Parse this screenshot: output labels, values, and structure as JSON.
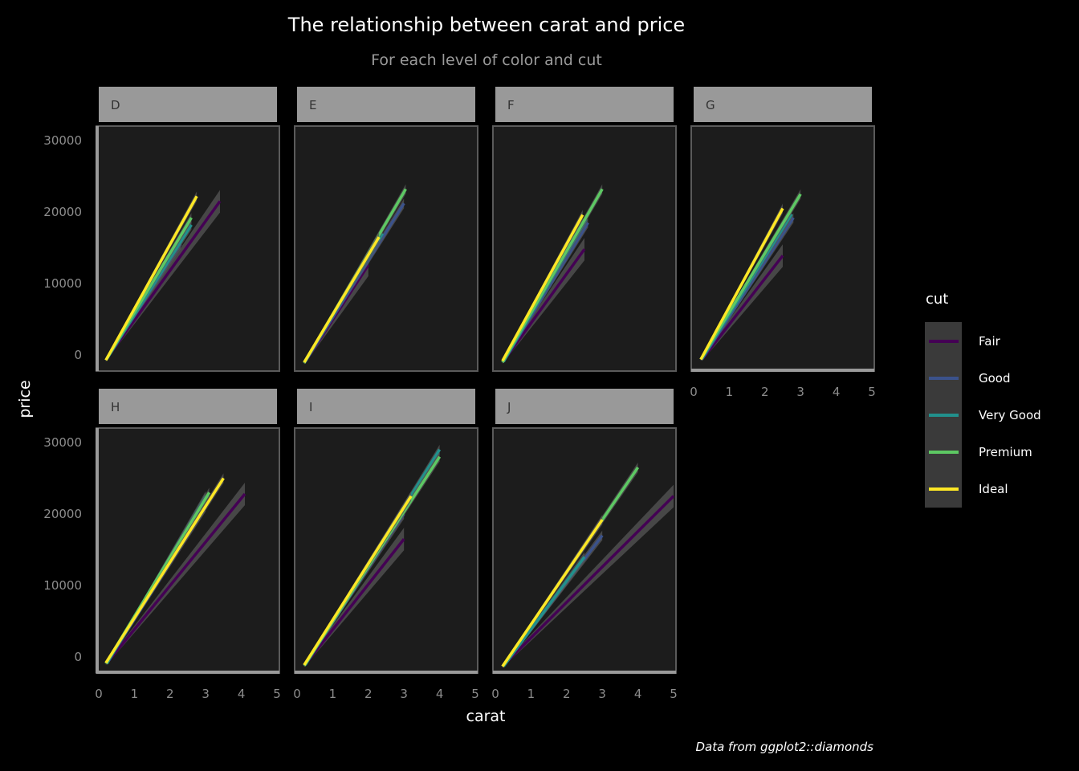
{
  "title": "The relationship between carat and price",
  "subtitle": "For each level of color and cut",
  "caption": "Data from ggplot2::diamonds",
  "chart_data": {
    "type": "line",
    "xlabel": "carat",
    "ylabel": "price",
    "xlim": [
      0,
      5
    ],
    "ylim": [
      -2000,
      32000
    ],
    "x_ticks": [
      "0",
      "1",
      "2",
      "3",
      "4",
      "5"
    ],
    "y_ticks": [
      "0",
      "10000",
      "20000",
      "30000"
    ],
    "legend": {
      "title": "cut",
      "position": "right",
      "entries": [
        {
          "name": "Fair",
          "color": "#440154"
        },
        {
          "name": "Good",
          "color": "#3b528b"
        },
        {
          "name": "Very Good",
          "color": "#21908c"
        },
        {
          "name": "Premium",
          "color": "#5dc863"
        },
        {
          "name": "Ideal",
          "color": "#fde725"
        }
      ]
    },
    "colors": {
      "background": "#000000",
      "panel": "#1c1c1c",
      "strip": "#999999",
      "ribbon": "#555555"
    },
    "facets": [
      {
        "label": "D",
        "series": [
          {
            "name": "Fair",
            "x": [
              0.25,
              3.4
            ],
            "y": [
              -300,
              21500
            ]
          },
          {
            "name": "Good",
            "x": [
              0.23,
              2.3
            ],
            "y": [
              -400,
              15500
            ]
          },
          {
            "name": "Very Good",
            "x": [
              0.23,
              2.6
            ],
            "y": [
              -500,
              18200
            ]
          },
          {
            "name": "Premium",
            "x": [
              0.2,
              2.6
            ],
            "y": [
              -700,
              19200
            ]
          },
          {
            "name": "Ideal",
            "x": [
              0.2,
              2.75
            ],
            "y": [
              -700,
              22200
            ]
          }
        ]
      },
      {
        "label": "E",
        "series": [
          {
            "name": "Fair",
            "x": [
              0.22,
              2.0
            ],
            "y": [
              -1000,
              12600
            ]
          },
          {
            "name": "Good",
            "x": [
              0.23,
              3.0
            ],
            "y": [
              -900,
              21200
            ]
          },
          {
            "name": "Very Good",
            "x": [
              0.2,
              2.4
            ],
            "y": [
              -1000,
              17000
            ]
          },
          {
            "name": "Premium",
            "x": [
              0.2,
              3.05
            ],
            "y": [
              -1100,
              23200
            ]
          },
          {
            "name": "Ideal",
            "x": [
              0.2,
              2.3
            ],
            "y": [
              -1000,
              16500
            ]
          }
        ]
      },
      {
        "label": "F",
        "series": [
          {
            "name": "Fair",
            "x": [
              0.25,
              2.5
            ],
            "y": [
              -700,
              14800
            ]
          },
          {
            "name": "Good",
            "x": [
              0.23,
              2.6
            ],
            "y": [
              -900,
              18500
            ]
          },
          {
            "name": "Very Good",
            "x": [
              0.23,
              2.55
            ],
            "y": [
              -900,
              19000
            ]
          },
          {
            "name": "Premium",
            "x": [
              0.2,
              3.0
            ],
            "y": [
              -1000,
              23200
            ]
          },
          {
            "name": "Ideal",
            "x": [
              0.2,
              2.45
            ],
            "y": [
              -800,
              19600
            ]
          }
        ]
      },
      {
        "label": "G",
        "series": [
          {
            "name": "Fair",
            "x": [
              0.25,
              2.5
            ],
            "y": [
              -500,
              13900
            ]
          },
          {
            "name": "Good",
            "x": [
              0.23,
              2.8
            ],
            "y": [
              -600,
              19200
            ]
          },
          {
            "name": "Very Good",
            "x": [
              0.23,
              2.75
            ],
            "y": [
              -500,
              19700
            ]
          },
          {
            "name": "Premium",
            "x": [
              0.2,
              3.0
            ],
            "y": [
              -600,
              22500
            ]
          },
          {
            "name": "Ideal",
            "x": [
              0.2,
              2.5
            ],
            "y": [
              -600,
              20500
            ]
          }
        ]
      },
      {
        "label": "H",
        "series": [
          {
            "name": "Fair",
            "x": [
              0.25,
              4.1
            ],
            "y": [
              -700,
              22800
            ]
          },
          {
            "name": "Good",
            "x": [
              0.23,
              3.0
            ],
            "y": [
              -800,
              21000
            ]
          },
          {
            "name": "Very Good",
            "x": [
              0.23,
              3.0
            ],
            "y": [
              -900,
              22500
            ]
          },
          {
            "name": "Premium",
            "x": [
              0.2,
              3.1
            ],
            "y": [
              -900,
              23000
            ]
          },
          {
            "name": "Ideal",
            "x": [
              0.2,
              3.5
            ],
            "y": [
              -800,
              25000
            ]
          }
        ]
      },
      {
        "label": "I",
        "series": [
          {
            "name": "Fair",
            "x": [
              0.25,
              3.0
            ],
            "y": [
              -900,
              16500
            ]
          },
          {
            "name": "Good",
            "x": [
              0.23,
              3.0
            ],
            "y": [
              -1000,
              20000
            ]
          },
          {
            "name": "Very Good",
            "x": [
              0.23,
              4.0
            ],
            "y": [
              -1100,
              29000
            ]
          },
          {
            "name": "Premium",
            "x": [
              0.2,
              4.0
            ],
            "y": [
              -1200,
              28000
            ]
          },
          {
            "name": "Ideal",
            "x": [
              0.2,
              3.2
            ],
            "y": [
              -1100,
              22500
            ]
          }
        ]
      },
      {
        "label": "J",
        "series": [
          {
            "name": "Fair",
            "x": [
              0.25,
              5.0
            ],
            "y": [
              -1000,
              22500
            ]
          },
          {
            "name": "Good",
            "x": [
              0.23,
              3.0
            ],
            "y": [
              -1200,
              17000
            ]
          },
          {
            "name": "Very Good",
            "x": [
              0.23,
              2.5
            ],
            "y": [
              -1300,
              14000
            ]
          },
          {
            "name": "Premium",
            "x": [
              0.2,
              4.0
            ],
            "y": [
              -1300,
              26500
            ]
          },
          {
            "name": "Ideal",
            "x": [
              0.2,
              3.0
            ],
            "y": [
              -1300,
              19200
            ]
          }
        ]
      }
    ]
  }
}
